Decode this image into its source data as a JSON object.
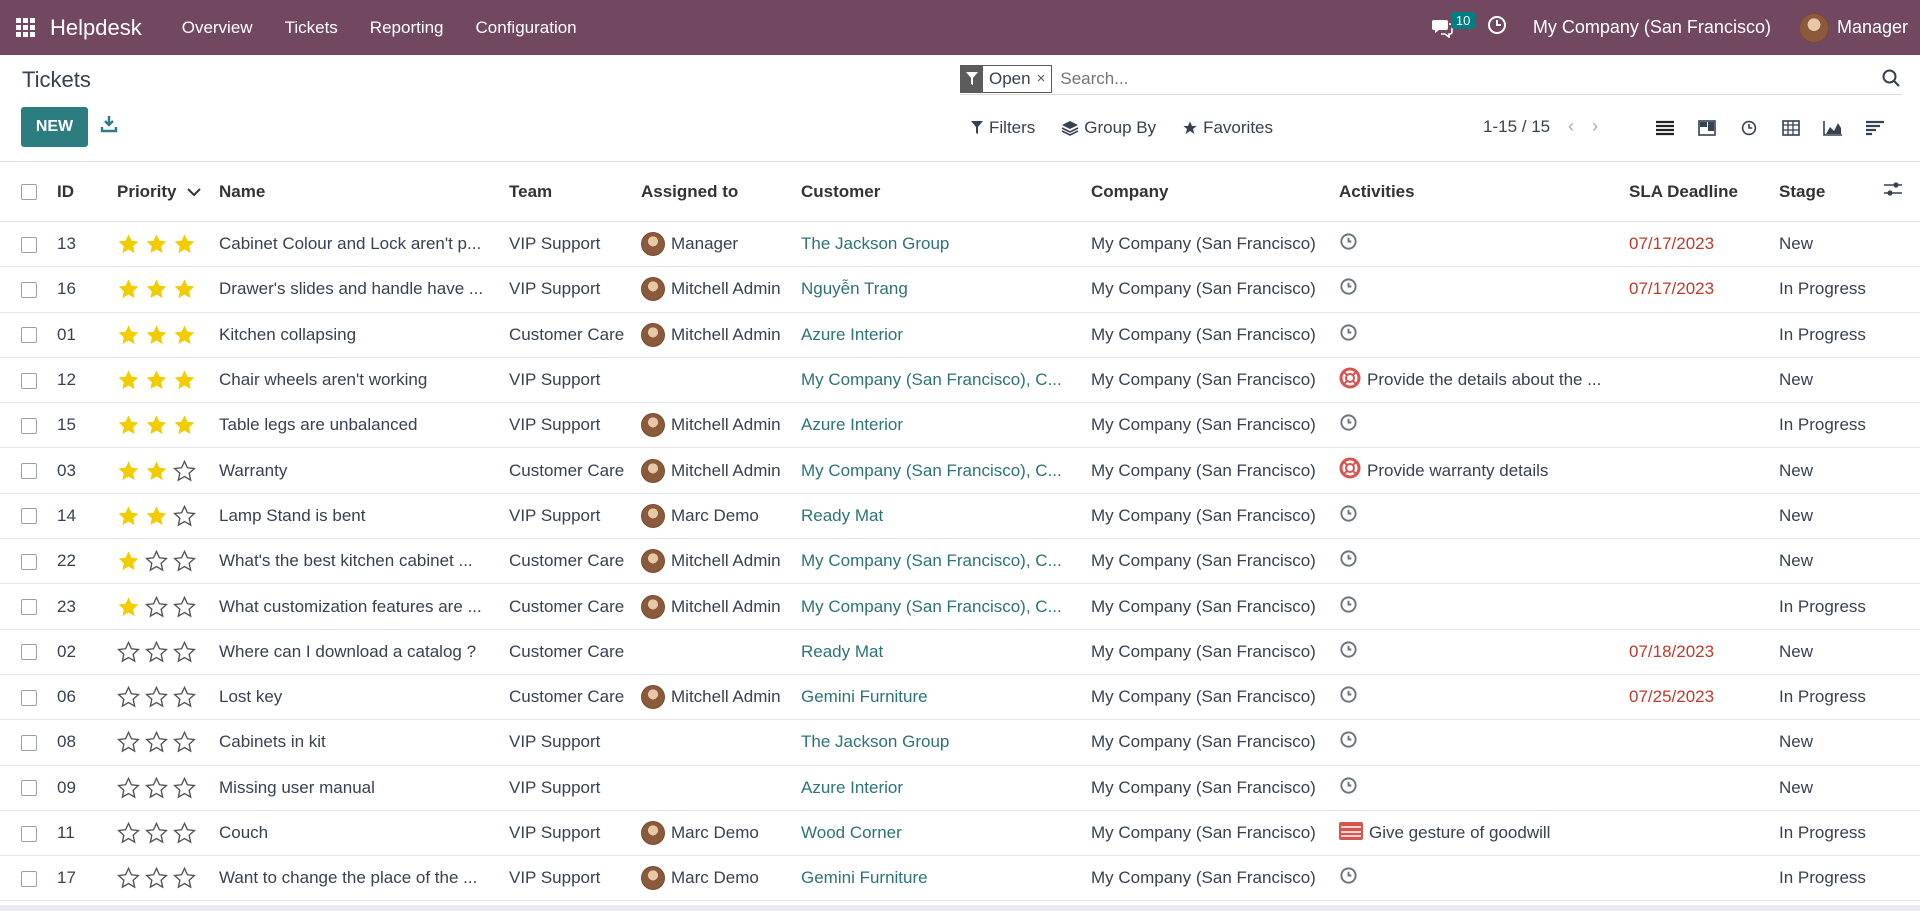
{
  "nav": {
    "app_name": "Helpdesk",
    "menu": [
      "Overview",
      "Tickets",
      "Reporting",
      "Configuration"
    ],
    "messages_count": "10",
    "company": "My Company (San Francisco)",
    "user": "Manager"
  },
  "control": {
    "page_title": "Tickets",
    "new_label": "NEW",
    "facet_value": "Open",
    "facet_close": "×",
    "search_placeholder": "Search...",
    "filters_label": "Filters",
    "groupby_label": "Group By",
    "favorites_label": "Favorites",
    "pager": "1-15 / 15"
  },
  "columns": {
    "id": "ID",
    "priority": "Priority",
    "name": "Name",
    "team": "Team",
    "assigned": "Assigned to",
    "customer": "Customer",
    "company": "Company",
    "activities": "Activities",
    "sla": "SLA Deadline",
    "stage": "Stage"
  },
  "rows": [
    {
      "id": "13",
      "stars": 3,
      "name": "Cabinet Colour and Lock aren't p...",
      "team": "VIP Support",
      "assigned": "Manager",
      "customer": "The Jackson Group",
      "company": "My Company (San Francisco)",
      "activity": "",
      "activity_icon": "clock-icon",
      "sla": "07/17/2023",
      "stage": "New"
    },
    {
      "id": "16",
      "stars": 3,
      "name": "Drawer's slides and handle have ...",
      "team": "VIP Support",
      "assigned": "Mitchell Admin",
      "customer": "Nguyễn Trang",
      "company": "My Company (San Francisco)",
      "activity": "",
      "activity_icon": "clock-icon",
      "sla": "07/17/2023",
      "stage": "In Progress"
    },
    {
      "id": "01",
      "stars": 3,
      "name": "Kitchen collapsing",
      "team": "Customer Care",
      "assigned": "Mitchell Admin",
      "customer": "Azure Interior",
      "company": "My Company (San Francisco)",
      "activity": "",
      "activity_icon": "clock-icon",
      "sla": "",
      "stage": "In Progress"
    },
    {
      "id": "12",
      "stars": 3,
      "name": "Chair wheels aren't working",
      "team": "VIP Support",
      "assigned": "",
      "customer": "My Company (San Francisco), C...",
      "company": "My Company (San Francisco)",
      "activity": "Provide the details about the ...",
      "activity_icon": "lifebuoy-icon",
      "sla": "",
      "stage": "New"
    },
    {
      "id": "15",
      "stars": 3,
      "name": "Table legs are unbalanced",
      "team": "VIP Support",
      "assigned": "Mitchell Admin",
      "customer": "Azure Interior",
      "company": "My Company (San Francisco)",
      "activity": "",
      "activity_icon": "clock-icon",
      "sla": "",
      "stage": "In Progress"
    },
    {
      "id": "03",
      "stars": 2,
      "name": "Warranty",
      "team": "Customer Care",
      "assigned": "Mitchell Admin",
      "customer": "My Company (San Francisco), C...",
      "company": "My Company (San Francisco)",
      "activity": "Provide warranty details",
      "activity_icon": "lifebuoy-icon",
      "sla": "",
      "stage": "New"
    },
    {
      "id": "14",
      "stars": 2,
      "name": "Lamp Stand is bent",
      "team": "VIP Support",
      "assigned": "Marc Demo",
      "customer": "Ready Mat",
      "company": "My Company (San Francisco)",
      "activity": "",
      "activity_icon": "clock-icon",
      "sla": "",
      "stage": "New"
    },
    {
      "id": "22",
      "stars": 1,
      "name": "What's the best kitchen cabinet ...",
      "team": "Customer Care",
      "assigned": "Mitchell Admin",
      "customer": "My Company (San Francisco), C...",
      "company": "My Company (San Francisco)",
      "activity": "",
      "activity_icon": "clock-icon",
      "sla": "",
      "stage": "New"
    },
    {
      "id": "23",
      "stars": 1,
      "name": "What customization features are ...",
      "team": "Customer Care",
      "assigned": "Mitchell Admin",
      "customer": "My Company (San Francisco), C...",
      "company": "My Company (San Francisco)",
      "activity": "",
      "activity_icon": "clock-icon",
      "sla": "",
      "stage": "In Progress"
    },
    {
      "id": "02",
      "stars": 0,
      "name": "Where can I download a catalog ?",
      "team": "Customer Care",
      "assigned": "",
      "customer": "Ready Mat",
      "company": "My Company (San Francisco)",
      "activity": "",
      "activity_icon": "clock-icon",
      "sla": "07/18/2023",
      "stage": "New"
    },
    {
      "id": "06",
      "stars": 0,
      "name": "Lost key",
      "team": "Customer Care",
      "assigned": "Mitchell Admin",
      "customer": "Gemini Furniture",
      "company": "My Company (San Francisco)",
      "activity": "",
      "activity_icon": "clock-icon",
      "sla": "07/25/2023",
      "stage": "In Progress"
    },
    {
      "id": "08",
      "stars": 0,
      "name": "Cabinets in kit",
      "team": "VIP Support",
      "assigned": "",
      "customer": "The Jackson Group",
      "company": "My Company (San Francisco)",
      "activity": "",
      "activity_icon": "clock-icon",
      "sla": "",
      "stage": "New"
    },
    {
      "id": "09",
      "stars": 0,
      "name": "Missing user manual",
      "team": "VIP Support",
      "assigned": "",
      "customer": "Azure Interior",
      "company": "My Company (San Francisco)",
      "activity": "",
      "activity_icon": "clock-icon",
      "sla": "",
      "stage": "New"
    },
    {
      "id": "11",
      "stars": 0,
      "name": "Couch",
      "team": "VIP Support",
      "assigned": "Marc Demo",
      "customer": "Wood Corner",
      "company": "My Company (San Francisco)",
      "activity": "Give gesture of goodwill",
      "activity_icon": "gift-icon",
      "sla": "",
      "stage": "In Progress"
    },
    {
      "id": "17",
      "stars": 0,
      "name": "Want to change the place of the ...",
      "team": "VIP Support",
      "assigned": "Marc Demo",
      "customer": "Gemini Furniture",
      "company": "My Company (San Francisco)",
      "activity": "",
      "activity_icon": "clock-icon",
      "sla": "",
      "stage": "In Progress"
    }
  ],
  "colors": {
    "nav_bg": "#71485f",
    "primary_btn": "#2c7d80",
    "link": "#2c7376",
    "star": "#f3cc00",
    "overdue": "#c0392b"
  }
}
